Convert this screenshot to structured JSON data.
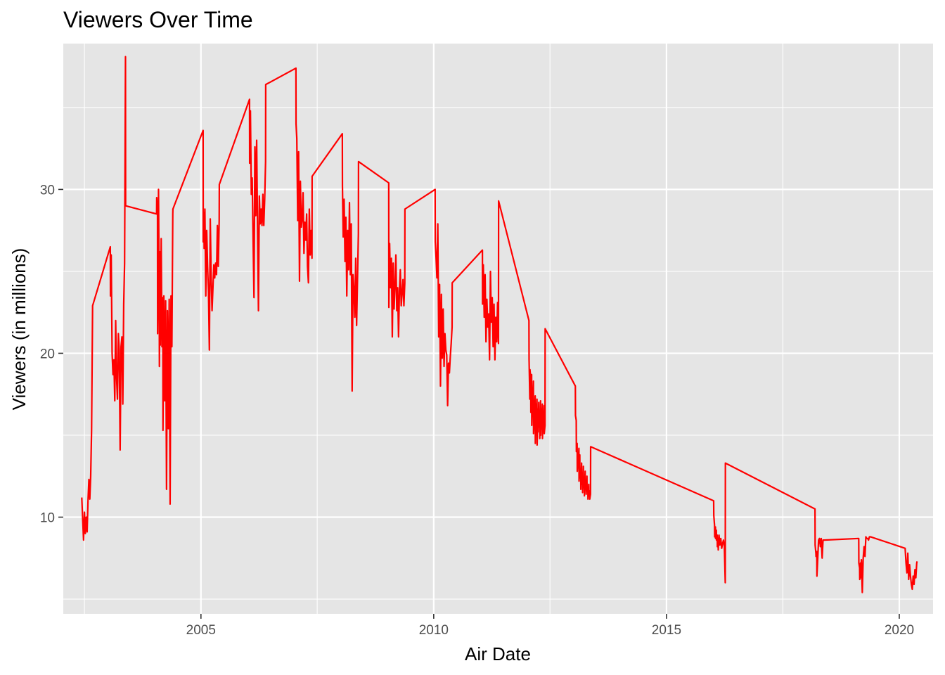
{
  "chart_data": {
    "type": "line",
    "title": "Viewers Over Time",
    "xlabel": "Air Date",
    "ylabel": "Viewers (in millions)",
    "x_axis_type": "date",
    "xlim": [
      "2002-01-17",
      "2020-09-22"
    ],
    "ylim": [
      4.1,
      38.9
    ],
    "x_ticks": [
      {
        "value": "2005-01-01",
        "label": "2005"
      },
      {
        "value": "2010-01-01",
        "label": "2010"
      },
      {
        "value": "2015-01-01",
        "label": "2015"
      },
      {
        "value": "2020-01-01",
        "label": "2020"
      }
    ],
    "x_minor_ticks": [
      "2002-07-02",
      "2007-07-02",
      "2012-07-01",
      "2017-07-02"
    ],
    "y_ticks": [
      10,
      20,
      30
    ],
    "y_minor_ticks": [
      5,
      15,
      25,
      35
    ],
    "grid": true,
    "legend": "none",
    "line_color": "#ff0000",
    "panel_background": "#e5e5e5",
    "grid_color": "#ffffff",
    "series": [
      {
        "x": [
          "2002-06-11",
          "2002-06-18",
          "2002-06-25",
          "2002-07-02",
          "2002-07-09",
          "2002-07-16",
          "2002-07-23",
          "2002-07-30",
          "2002-08-06",
          "2002-08-13",
          "2002-08-20",
          "2002-08-27",
          "2002-09-04",
          "2003-01-21",
          "2003-01-22",
          "2003-01-28",
          "2003-02-04",
          "2003-02-11",
          "2003-02-18",
          "2003-02-25",
          "2003-03-04",
          "2003-03-11",
          "2003-03-18",
          "2003-03-25",
          "2003-04-01",
          "2003-04-08",
          "2003-04-15",
          "2003-04-22",
          "2003-04-29",
          "2003-05-06",
          "2003-05-13",
          "2003-05-20",
          "2003-05-21",
          "2004-01-19",
          "2004-01-20",
          "2004-01-26",
          "2004-01-27",
          "2004-02-02",
          "2004-02-03",
          "2004-02-09",
          "2004-02-10",
          "2004-02-16",
          "2004-02-17",
          "2004-02-23",
          "2004-02-24",
          "2004-03-01",
          "2004-03-02",
          "2004-03-08",
          "2004-03-09",
          "2004-03-16",
          "2004-03-23",
          "2004-03-30",
          "2004-04-06",
          "2004-04-13",
          "2004-04-20",
          "2004-04-27",
          "2004-05-04",
          "2004-05-11",
          "2004-05-18",
          "2004-05-25",
          "2004-05-26",
          "2005-01-18",
          "2005-01-19",
          "2005-01-25",
          "2005-01-26",
          "2005-02-01",
          "2005-02-08",
          "2005-02-15",
          "2005-02-22",
          "2005-03-01",
          "2005-03-08",
          "2005-03-15",
          "2005-03-22",
          "2005-03-29",
          "2005-04-05",
          "2005-04-12",
          "2005-04-19",
          "2005-04-26",
          "2005-05-03",
          "2005-05-10",
          "2005-05-17",
          "2005-05-24",
          "2005-05-25",
          "2006-01-17",
          "2006-01-18",
          "2006-01-24",
          "2006-01-31",
          "2006-02-07",
          "2006-02-14",
          "2006-02-21",
          "2006-02-28",
          "2006-03-07",
          "2006-03-14",
          "2006-03-21",
          "2006-03-28",
          "2006-04-04",
          "2006-04-11",
          "2006-04-18",
          "2006-04-25",
          "2006-05-02",
          "2006-05-09",
          "2006-05-16",
          "2006-05-23",
          "2006-05-24",
          "2007-01-16",
          "2007-01-17",
          "2007-01-23",
          "2007-01-30",
          "2007-02-06",
          "2007-02-13",
          "2007-02-20",
          "2007-02-27",
          "2007-03-06",
          "2007-03-13",
          "2007-03-20",
          "2007-03-27",
          "2007-04-03",
          "2007-04-10",
          "2007-04-17",
          "2007-04-24",
          "2007-05-01",
          "2007-05-08",
          "2007-05-15",
          "2007-05-22",
          "2007-05-23",
          "2008-01-15",
          "2008-01-16",
          "2008-01-22",
          "2008-01-29",
          "2008-02-05",
          "2008-02-12",
          "2008-02-19",
          "2008-02-26",
          "2008-03-04",
          "2008-03-11",
          "2008-03-18",
          "2008-03-25",
          "2008-04-01",
          "2008-04-08",
          "2008-04-15",
          "2008-04-22",
          "2008-04-29",
          "2008-05-06",
          "2008-05-13",
          "2008-05-20",
          "2008-05-21",
          "2009-01-13",
          "2009-01-14",
          "2009-01-20",
          "2009-01-27",
          "2009-02-03",
          "2009-02-10",
          "2009-02-17",
          "2009-02-24",
          "2009-03-03",
          "2009-03-10",
          "2009-03-17",
          "2009-03-24",
          "2009-03-31",
          "2009-04-07",
          "2009-04-14",
          "2009-04-21",
          "2009-04-28",
          "2009-05-05",
          "2009-05-12",
          "2009-05-19",
          "2009-05-20",
          "2010-01-12",
          "2010-01-13",
          "2010-01-19",
          "2010-01-26",
          "2010-02-02",
          "2010-02-09",
          "2010-02-16",
          "2010-02-23",
          "2010-03-02",
          "2010-03-09",
          "2010-03-16",
          "2010-03-23",
          "2010-03-30",
          "2010-04-06",
          "2010-04-13",
          "2010-04-20",
          "2010-04-27",
          "2010-05-04",
          "2010-05-11",
          "2010-05-18",
          "2010-05-25",
          "2010-05-26",
          "2011-01-18",
          "2011-01-19",
          "2011-01-25",
          "2011-02-01",
          "2011-02-08",
          "2011-02-15",
          "2011-02-22",
          "2011-03-01",
          "2011-03-08",
          "2011-03-15",
          "2011-03-22",
          "2011-03-29",
          "2011-04-05",
          "2011-04-12",
          "2011-04-19",
          "2011-04-26",
          "2011-05-03",
          "2011-05-10",
          "2011-05-17",
          "2011-05-24",
          "2011-05-25",
          "2012-01-18",
          "2012-01-19",
          "2012-01-25",
          "2012-01-26",
          "2012-02-01",
          "2012-02-02",
          "2012-02-08",
          "2012-02-09",
          "2012-02-15",
          "2012-02-16",
          "2012-02-22",
          "2012-02-23",
          "2012-03-07",
          "2012-03-08",
          "2012-03-14",
          "2012-03-15",
          "2012-03-21",
          "2012-03-22",
          "2012-03-28",
          "2012-03-29",
          "2012-04-04",
          "2012-04-05",
          "2012-04-11",
          "2012-04-12",
          "2012-04-18",
          "2012-04-19",
          "2012-04-25",
          "2012-04-26",
          "2012-05-02",
          "2012-05-03",
          "2012-05-09",
          "2012-05-10",
          "2012-05-16",
          "2012-05-17",
          "2012-05-23",
          "2012-05-24",
          "2013-01-16",
          "2013-01-17",
          "2013-01-23",
          "2013-01-24",
          "2013-01-30",
          "2013-01-31",
          "2013-02-06",
          "2013-02-07",
          "2013-02-13",
          "2013-02-14",
          "2013-02-20",
          "2013-02-21",
          "2013-02-27",
          "2013-02-28",
          "2013-03-06",
          "2013-03-07",
          "2013-03-13",
          "2013-03-14",
          "2013-03-20",
          "2013-03-21",
          "2013-03-27",
          "2013-03-28",
          "2013-04-03",
          "2013-04-04",
          "2013-04-10",
          "2013-04-11",
          "2013-04-17",
          "2013-04-18",
          "2013-04-24",
          "2013-04-25",
          "2013-05-01",
          "2013-05-02",
          "2013-05-08",
          "2013-05-09",
          "2013-05-15",
          "2013-05-16",
          "2016-01-06",
          "2016-01-07",
          "2016-01-13",
          "2016-01-14",
          "2016-01-20",
          "2016-01-21",
          "2016-01-27",
          "2016-01-28",
          "2016-02-03",
          "2016-02-04",
          "2016-02-10",
          "2016-02-11",
          "2016-02-17",
          "2016-02-24",
          "2016-03-02",
          "2016-03-09",
          "2016-03-16",
          "2016-03-23",
          "2016-03-30",
          "2016-04-06",
          "2016-04-07",
          "2018-03-11",
          "2018-03-12",
          "2018-03-18",
          "2018-03-19",
          "2018-03-25",
          "2018-03-26",
          "2018-04-01",
          "2018-04-08",
          "2018-04-15",
          "2018-04-22",
          "2018-04-29",
          "2018-05-06",
          "2018-05-13",
          "2018-05-20",
          "2018-05-21",
          "2019-02-17",
          "2019-02-18",
          "2019-02-24",
          "2019-02-25",
          "2019-03-03",
          "2019-03-04",
          "2019-03-10",
          "2019-03-17",
          "2019-03-24",
          "2019-03-31",
          "2019-04-07",
          "2019-04-14",
          "2019-04-21",
          "2019-04-28",
          "2019-05-05",
          "2019-05-12",
          "2019-05-19",
          "2019-05-20",
          "2020-02-16",
          "2020-02-23",
          "2020-03-01",
          "2020-03-08",
          "2020-03-15",
          "2020-03-22",
          "2020-03-29",
          "2020-04-05",
          "2020-04-12",
          "2020-04-19",
          "2020-04-26",
          "2020-05-03",
          "2020-05-10",
          "2020-05-17",
          "2020-05-20"
        ],
        "y": [
          11.2,
          9.9,
          8.6,
          10.3,
          9.0,
          10.0,
          9.1,
          11.0,
          12.3,
          11.1,
          12.5,
          15.3,
          22.9,
          26.5,
          23.5,
          26.0,
          20.0,
          18.7,
          19.6,
          17.1,
          22.0,
          18.5,
          17.2,
          21.2,
          20.2,
          14.1,
          20.4,
          21.0,
          16.9,
          23.0,
          25.5,
          38.1,
          29.0,
          28.5,
          29.5,
          28.7,
          21.2,
          26.4,
          30.0,
          22.6,
          19.2,
          26.2,
          20.5,
          25.7,
          27.0,
          20.4,
          22.9,
          23.4,
          15.3,
          23.5,
          17.1,
          23.2,
          11.7,
          22.6,
          15.4,
          23.3,
          10.8,
          23.5,
          20.4,
          28.5,
          28.8,
          33.6,
          26.8,
          28.6,
          26.4,
          28.8,
          23.5,
          27.5,
          25.3,
          23.8,
          20.2,
          28.2,
          24.7,
          22.6,
          24.0,
          25.4,
          24.6,
          25.5,
          24.8,
          27.8,
          25.3,
          28.1,
          30.3,
          35.5,
          31.6,
          34.8,
          29.7,
          30.7,
          27.0,
          23.4,
          32.6,
          28.4,
          33.0,
          27.5,
          22.6,
          29.6,
          27.9,
          28.8,
          27.8,
          29.7,
          27.8,
          29.4,
          31.7,
          36.4,
          37.4,
          34.0,
          33.1,
          28.1,
          32.3,
          24.4,
          30.5,
          27.7,
          28.2,
          29.8,
          26.1,
          28.0,
          26.9,
          28.5,
          25.3,
          24.3,
          28.8,
          26.0,
          27.5,
          25.8,
          30.8,
          33.4,
          30.2,
          27.1,
          29.4,
          25.6,
          28.3,
          23.5,
          27.5,
          25.1,
          29.2,
          24.8,
          27.9,
          17.7,
          24.8,
          23.9,
          22.2,
          25.8,
          21.7,
          24.5,
          27.3,
          31.7,
          30.4,
          22.8,
          26.7,
          24.0,
          25.8,
          21.0,
          25.5,
          22.7,
          24.1,
          26.0,
          22.6,
          24.0,
          21.0,
          23.8,
          25.1,
          22.9,
          23.7,
          24.5,
          22.9,
          24.3,
          28.8,
          30.0,
          26.8,
          25.9,
          24.6,
          27.9,
          21.0,
          24.2,
          18.0,
          23.6,
          19.7,
          22.7,
          19.2,
          21.2,
          20.2,
          19.9,
          16.8,
          19.4,
          18.8,
          19.8,
          20.6,
          21.6,
          24.3,
          26.3,
          23.0,
          25.4,
          22.2,
          24.8,
          20.7,
          23.3,
          21.6,
          22.4,
          19.6,
          25.0,
          21.9,
          23.4,
          20.4,
          23.0,
          19.6,
          22.2,
          20.7,
          23.1,
          20.6,
          29.3,
          22.0,
          19.6,
          17.2,
          19.0,
          18.5,
          16.4,
          18.7,
          15.6,
          17.6,
          16.8,
          18.3,
          15.1,
          17.4,
          14.5,
          16.9,
          15.4,
          17.2,
          14.4,
          16.6,
          15.2,
          17.0,
          15.5,
          16.3,
          14.8,
          17.1,
          15.0,
          16.6,
          15.4,
          16.9,
          14.8,
          16.2,
          15.6,
          16.8,
          15.1,
          15.6,
          21.5,
          18.0,
          16.2,
          15.9,
          14.0,
          14.5,
          12.8,
          13.6,
          13.2,
          14.2,
          12.2,
          13.8,
          12.4,
          12.9,
          11.7,
          13.3,
          12.0,
          12.6,
          11.5,
          13.1,
          11.8,
          12.4,
          11.3,
          12.8,
          11.9,
          12.2,
          11.4,
          12.5,
          11.6,
          11.8,
          11.1,
          12.0,
          11.3,
          11.6,
          11.1,
          11.4,
          14.3,
          11.0,
          10.1,
          9.5,
          8.8,
          9.4,
          8.7,
          9.2,
          8.6,
          8.9,
          8.2,
          8.7,
          8.0,
          8.9,
          8.3,
          8.7,
          8.1,
          8.4,
          8.6,
          8.2,
          6.0,
          13.3,
          10.5,
          8.3,
          7.8,
          7.6,
          7.9,
          6.4,
          7.4,
          8.6,
          8.7,
          8.2,
          8.7,
          7.5,
          8.6,
          8.6,
          8.6,
          8.7,
          7.2,
          6.9,
          6.2,
          7.2,
          6.3,
          7.4,
          5.4,
          7.5,
          8.2,
          7.6,
          8.8,
          8.7,
          8.7,
          8.6,
          8.8,
          8.8,
          8.8,
          8.1,
          7.2,
          6.6,
          7.8,
          6.2,
          7.1,
          6.4,
          5.9,
          5.6,
          6.4,
          5.9,
          6.8,
          6.3,
          7.2,
          7.3
        ]
      }
    ]
  }
}
